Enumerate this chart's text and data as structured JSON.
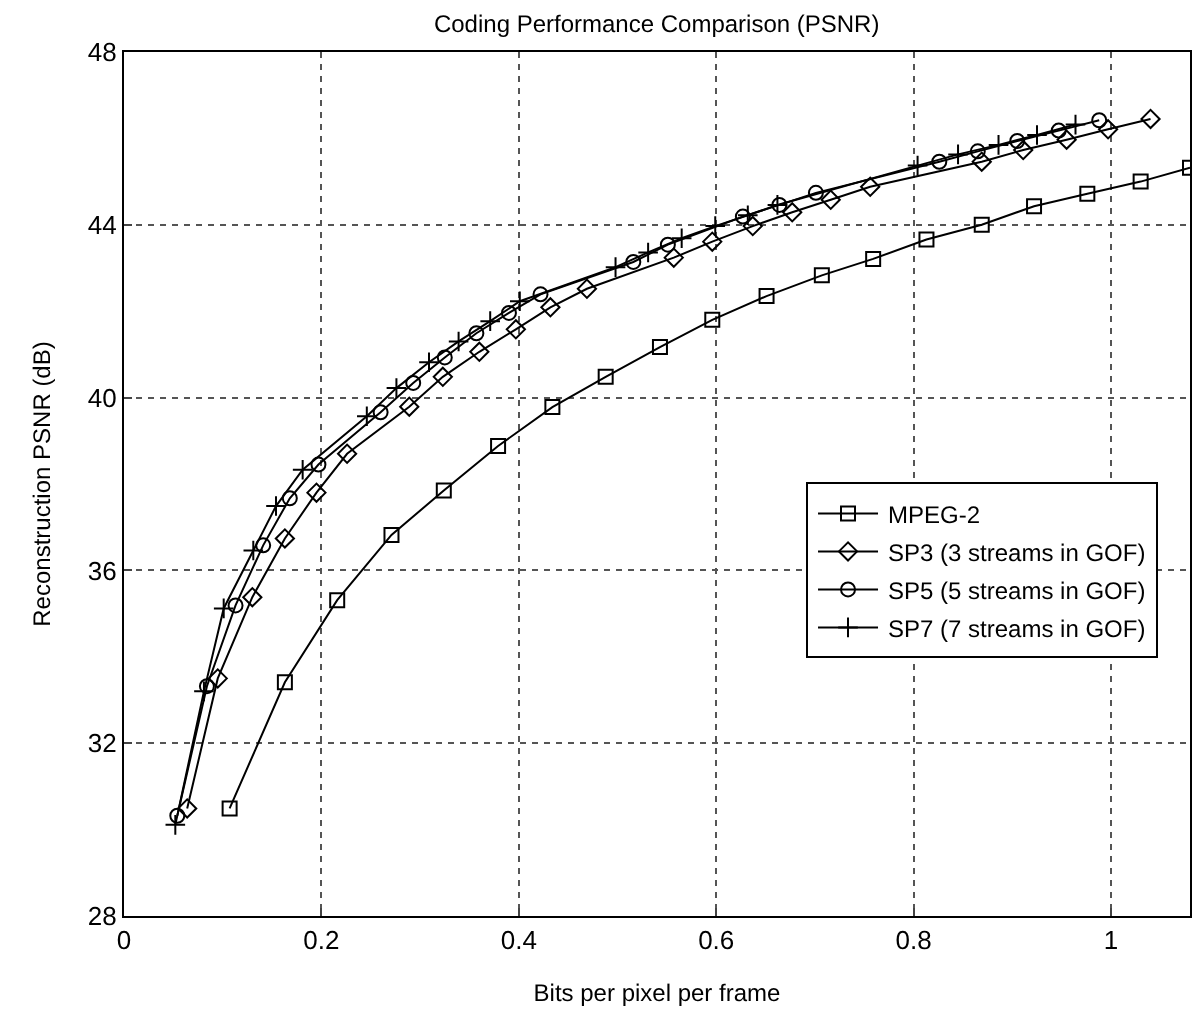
{
  "chart_data": {
    "type": "line",
    "title": "Coding Performance Comparison (PSNR)",
    "xlabel": "Bits per pixel per frame",
    "ylabel": "Reconstruction PSNR (dB)",
    "xlim": [
      0,
      1.08
    ],
    "xticks": [
      0,
      0.2,
      0.4,
      0.6,
      0.8,
      1
    ],
    "ylim": [
      28,
      48
    ],
    "yticks": [
      28,
      32,
      36,
      40,
      44,
      48
    ],
    "grid": true,
    "legend": "right",
    "line_style": "solid",
    "series": [
      {
        "name": "MPEG-2",
        "color": "#000000",
        "marker": "square",
        "x": [
          0.107,
          0.163,
          0.216,
          0.271,
          0.324,
          0.379,
          0.434,
          0.488,
          0.543,
          0.596,
          0.651,
          0.707,
          0.759,
          0.813,
          0.869,
          0.922,
          0.976,
          1.03,
          1.08
        ],
        "values": [
          30.49,
          33.41,
          35.31,
          36.82,
          37.85,
          38.88,
          39.78,
          40.48,
          41.17,
          41.8,
          42.35,
          42.83,
          43.21,
          43.66,
          44.0,
          44.43,
          44.72,
          45.0,
          45.32
        ]
      },
      {
        "name": "SP3 (3 streams in GOF)",
        "color": "#000000",
        "marker": "diamond",
        "x": [
          0.064,
          0.095,
          0.13,
          0.163,
          0.195,
          0.226,
          0.289,
          0.323,
          0.36,
          0.397,
          0.432,
          0.469,
          0.557,
          0.596,
          0.637,
          0.677,
          0.716,
          0.756,
          0.869,
          0.911,
          0.955,
          0.997,
          1.04
        ],
        "values": [
          30.49,
          33.5,
          35.38,
          36.74,
          37.8,
          38.7,
          39.79,
          40.48,
          41.06,
          41.58,
          42.09,
          42.52,
          43.24,
          43.61,
          43.97,
          44.29,
          44.58,
          44.88,
          45.46,
          45.73,
          45.97,
          46.21,
          46.45
        ]
      },
      {
        "name": "SP5 (5 streams in GOF)",
        "color": "#000000",
        "marker": "circle",
        "x": [
          0.054,
          0.084,
          0.113,
          0.141,
          0.168,
          0.197,
          0.26,
          0.293,
          0.325,
          0.357,
          0.39,
          0.422,
          0.516,
          0.551,
          0.627,
          0.664,
          0.701,
          0.826,
          0.865,
          0.905,
          0.947,
          0.988
        ],
        "values": [
          30.32,
          33.32,
          35.19,
          36.58,
          37.67,
          38.45,
          39.66,
          40.34,
          40.93,
          41.49,
          41.96,
          42.39,
          43.14,
          43.54,
          44.19,
          44.46,
          44.74,
          45.46,
          45.7,
          45.94,
          46.18,
          46.42
        ]
      },
      {
        "name": "SP7 (7 streams in GOF)",
        "color": "#000000",
        "marker": "cross",
        "x": [
          0.052,
          0.081,
          0.101,
          0.131,
          0.154,
          0.181,
          0.246,
          0.276,
          0.309,
          0.339,
          0.371,
          0.401,
          0.498,
          0.531,
          0.565,
          0.599,
          0.632,
          0.662,
          0.804,
          0.845,
          0.886,
          0.925,
          0.964
        ],
        "values": [
          30.11,
          33.2,
          35.12,
          36.46,
          37.49,
          38.33,
          39.57,
          40.22,
          40.82,
          41.3,
          41.77,
          42.23,
          43.02,
          43.36,
          43.69,
          43.97,
          44.22,
          44.46,
          45.37,
          45.63,
          45.85,
          46.08,
          46.32
        ]
      }
    ]
  }
}
